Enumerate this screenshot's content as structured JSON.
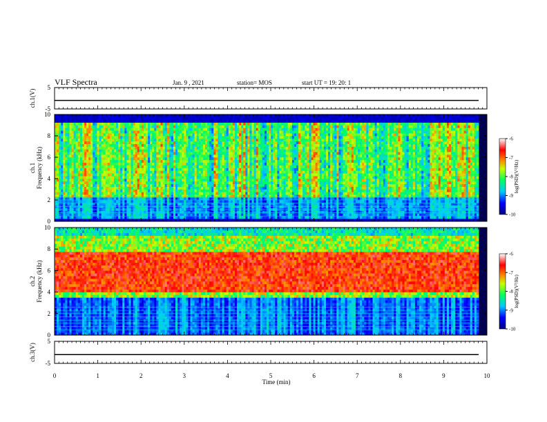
{
  "header": {
    "title": "VLF Spectra",
    "date": "Jan. 9 , 2021",
    "station": "station= MOS",
    "start_ut": "start UT =  19: 20: 1"
  },
  "chart_data": [
    {
      "type": "line",
      "panel": "ch1-waveform",
      "ylabel": "ch.1(V)",
      "ylim": [
        -5,
        5
      ],
      "yticks": [
        "5",
        "-5"
      ],
      "series": [
        {
          "values": [
            -1,
            -1
          ]
        }
      ]
    },
    {
      "type": "heatmap",
      "panel": "ch1-spectrogram",
      "ylabel": "ch.1\nFrequency (kHz)",
      "ylabel_lines": [
        "ch.1",
        "Frequency (kHz)"
      ],
      "ylim": [
        0,
        10
      ],
      "yticks": [
        "0",
        "2",
        "4",
        "6",
        "8",
        "10"
      ],
      "colorbar": {
        "label": "log(PSD)(V²/Hz)",
        "range": [
          -10,
          -6
        ],
        "ticks": [
          "-6",
          "-7",
          "-8",
          "-9",
          "-10"
        ]
      },
      "band_khz": [
        0.3,
        9.2
      ],
      "intensity_profile": "sferic-dominated, broadband 0.3-9 kHz impulses",
      "hum_lines_khz": [
        0.5,
        0.8,
        1.1,
        1.4,
        1.7,
        2.0,
        2.3
      ]
    },
    {
      "type": "heatmap",
      "panel": "ch2-spectrogram",
      "ylabel": "ch.2\nFrequency (kHz)",
      "ylabel_lines": [
        "ch.2",
        "Frequency (kHz)"
      ],
      "ylim": [
        0,
        10
      ],
      "yticks": [
        "0",
        "2",
        "4",
        "6",
        "8",
        "10"
      ],
      "colorbar": {
        "label": "log(PSD)(V²/Hz)",
        "range": [
          -10,
          -6
        ],
        "ticks": [
          "-6",
          "-7",
          "-8",
          "-9",
          "-10"
        ]
      },
      "band_khz": [
        3.5,
        8.5
      ],
      "intensity_profile": "strong continuous band 4-8 kHz",
      "hum_lines_khz": [
        0.5,
        0.8,
        1.1,
        1.4,
        1.7,
        2.0,
        2.3,
        2.6
      ]
    },
    {
      "type": "line",
      "panel": "ch3-waveform",
      "ylabel": "ch.3(V)",
      "ylim": [
        -5,
        5
      ],
      "yticks": [
        "5",
        "-5"
      ],
      "series": [
        {
          "values": [
            -1,
            -1
          ]
        }
      ]
    }
  ],
  "x_axis": {
    "label": "Time (min)",
    "range": [
      0,
      10
    ],
    "ticks": [
      "0",
      "1",
      "2",
      "3",
      "4",
      "5",
      "6",
      "7",
      "8",
      "9",
      "10"
    ]
  }
}
